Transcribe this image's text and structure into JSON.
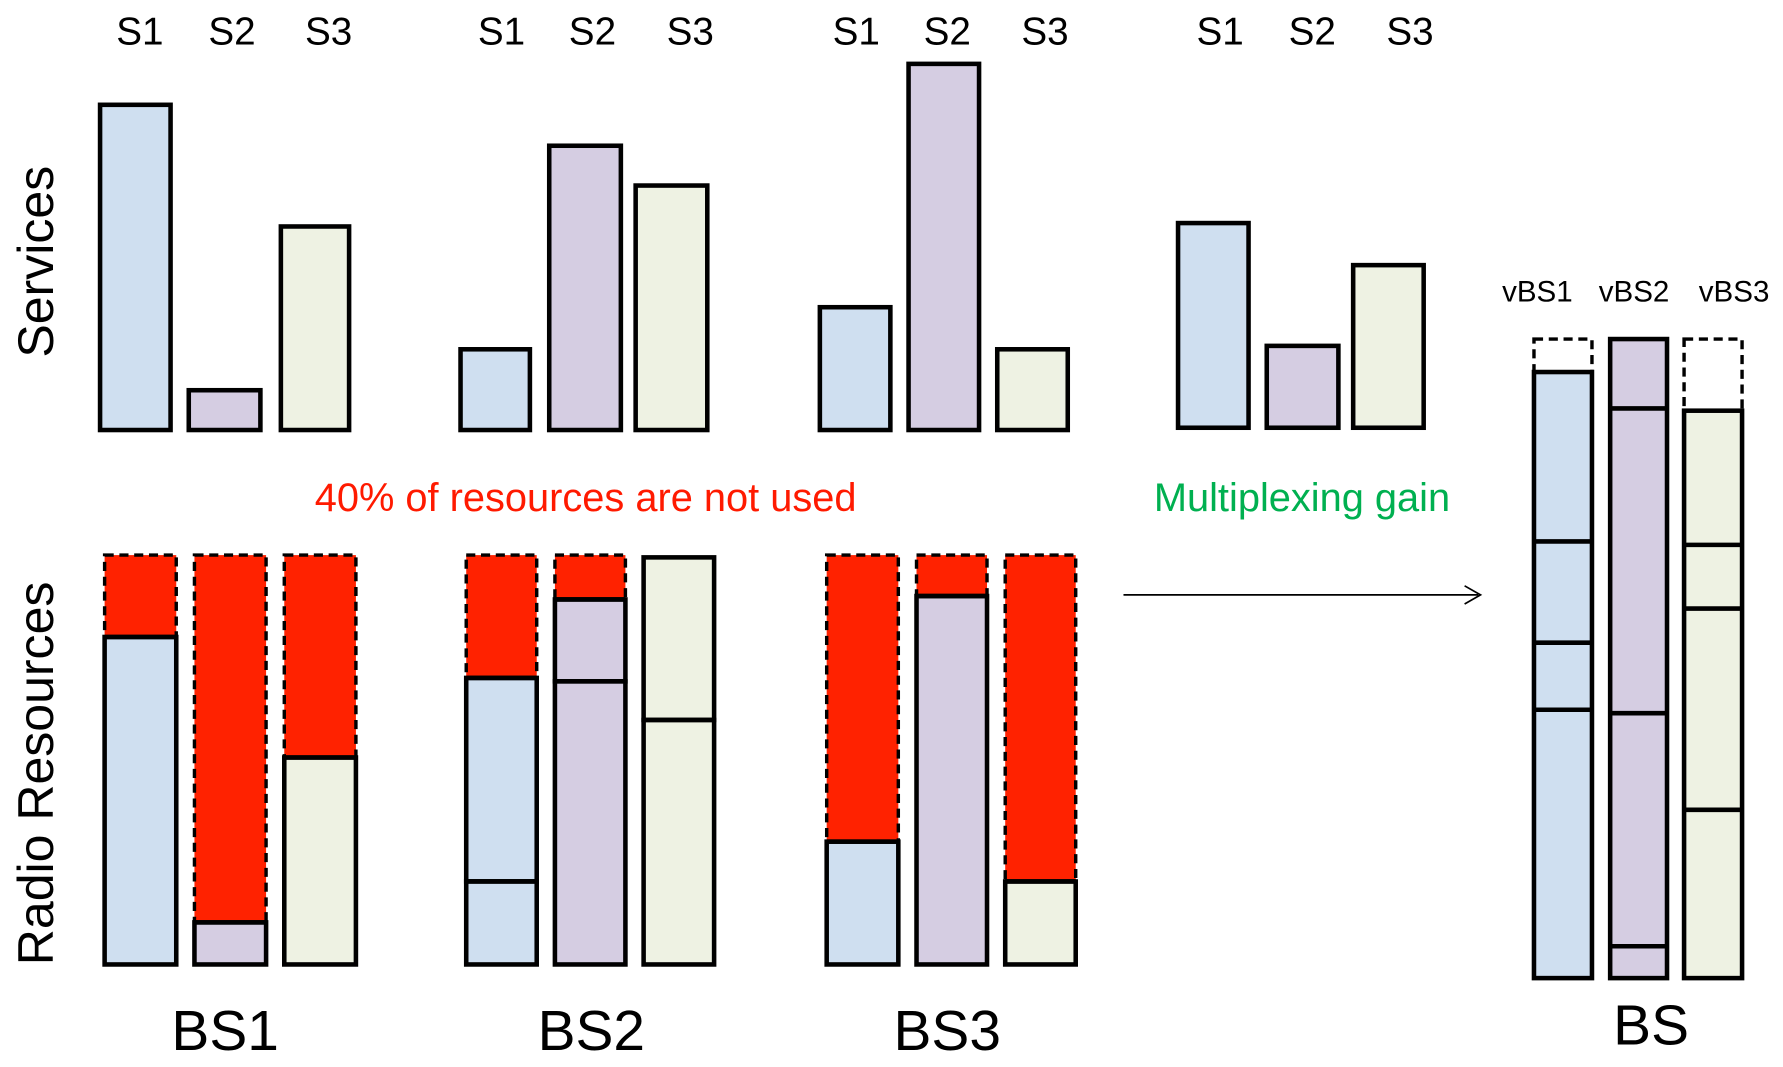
{
  "axis_labels": [
    "Services",
    "Radio Resources"
  ],
  "service_groups": [
    [
      "S1",
      "S2",
      "S3"
    ],
    [
      "S1",
      "S2",
      "S3"
    ],
    [
      "S1",
      "S2",
      "S3"
    ],
    [
      "S1",
      "S2",
      "S3"
    ]
  ],
  "base_stations": [
    "BS1",
    "BS2",
    "BS3"
  ],
  "annotations": {
    "unused": "40% of resources are not used",
    "gain": "Multiplexing gain"
  },
  "virtualized": {
    "label": "BS",
    "slices": [
      "vBS1",
      "vBS2",
      "vBS3"
    ]
  }
}
